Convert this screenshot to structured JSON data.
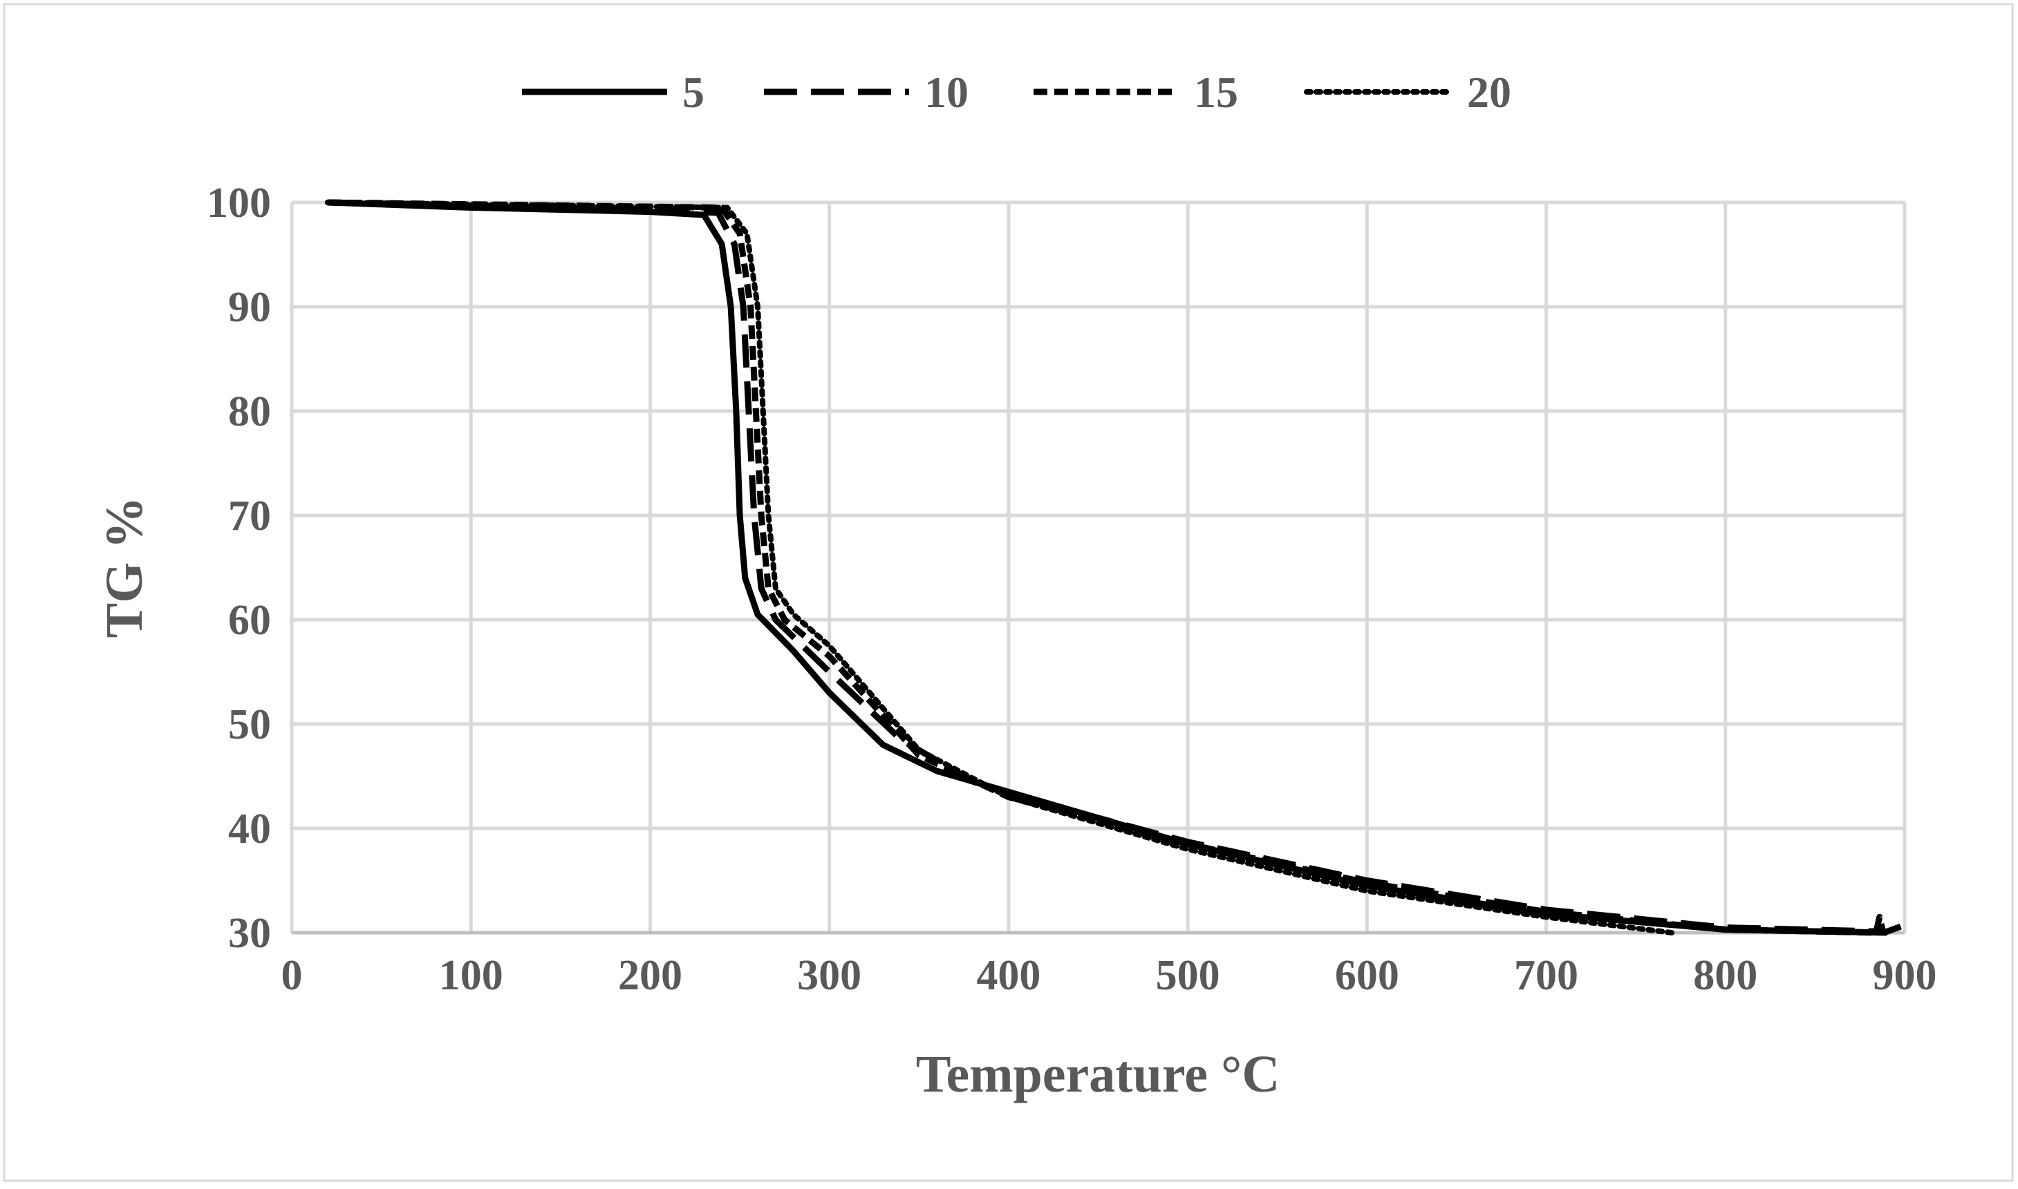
{
  "chart_data": {
    "type": "line",
    "title": "",
    "xlabel": "Temperature °C",
    "ylabel": "TG %",
    "xlim": [
      0,
      900
    ],
    "ylim": [
      30,
      100
    ],
    "xticks": [
      "0",
      "100",
      "200",
      "300",
      "400",
      "500",
      "600",
      "700",
      "800",
      "900"
    ],
    "yticks": [
      "30",
      "40",
      "50",
      "60",
      "70",
      "80",
      "90",
      "100"
    ],
    "grid": true,
    "legend_position": "top",
    "series": [
      {
        "name": "5",
        "style": "solid",
        "color": "#000000",
        "points": [
          [
            20,
            100
          ],
          [
            100,
            99.5
          ],
          [
            200,
            99.1
          ],
          [
            230,
            98.8
          ],
          [
            240,
            96
          ],
          [
            245,
            90
          ],
          [
            248,
            80
          ],
          [
            250,
            70
          ],
          [
            253,
            64
          ],
          [
            260,
            60.5
          ],
          [
            280,
            57
          ],
          [
            300,
            53
          ],
          [
            330,
            48
          ],
          [
            360,
            45.5
          ],
          [
            400,
            43.5
          ],
          [
            500,
            38.5
          ],
          [
            600,
            34.5
          ],
          [
            700,
            31.8
          ],
          [
            800,
            30.3
          ],
          [
            890,
            30
          ]
        ]
      },
      {
        "name": "10",
        "style": "dash",
        "color": "#000000",
        "points": [
          [
            20,
            100
          ],
          [
            200,
            99.3
          ],
          [
            238,
            99
          ],
          [
            247,
            96
          ],
          [
            252,
            90
          ],
          [
            255,
            80
          ],
          [
            258,
            70
          ],
          [
            262,
            63
          ],
          [
            270,
            60
          ],
          [
            300,
            55
          ],
          [
            340,
            48.5
          ],
          [
            380,
            44.5
          ],
          [
            400,
            43.3
          ],
          [
            500,
            38.7
          ],
          [
            600,
            35
          ],
          [
            700,
            32.2
          ],
          [
            800,
            30.5
          ],
          [
            890,
            30.1
          ],
          [
            898,
            30.6
          ]
        ]
      },
      {
        "name": "15",
        "style": "short-dash",
        "color": "#000000",
        "points": [
          [
            20,
            100
          ],
          [
            240,
            99.5
          ],
          [
            250,
            97
          ],
          [
            256,
            90
          ],
          [
            259,
            80
          ],
          [
            262,
            70
          ],
          [
            266,
            63
          ],
          [
            275,
            60
          ],
          [
            300,
            56.5
          ],
          [
            350,
            47
          ],
          [
            400,
            43
          ],
          [
            500,
            38.5
          ],
          [
            600,
            34.8
          ],
          [
            700,
            32
          ],
          [
            800,
            30.3
          ],
          [
            884,
            30
          ],
          [
            886,
            31.5
          ],
          [
            888,
            30
          ]
        ]
      },
      {
        "name": "20",
        "style": "dot",
        "color": "#000000",
        "points": [
          [
            20,
            100
          ],
          [
            243,
            99.5
          ],
          [
            254,
            97
          ],
          [
            260,
            90
          ],
          [
            263,
            80
          ],
          [
            266,
            70
          ],
          [
            270,
            63
          ],
          [
            280,
            60.5
          ],
          [
            300,
            57.5
          ],
          [
            350,
            47.5
          ],
          [
            400,
            43
          ],
          [
            500,
            38
          ],
          [
            600,
            34
          ],
          [
            700,
            31.5
          ],
          [
            770,
            30
          ]
        ]
      }
    ]
  }
}
